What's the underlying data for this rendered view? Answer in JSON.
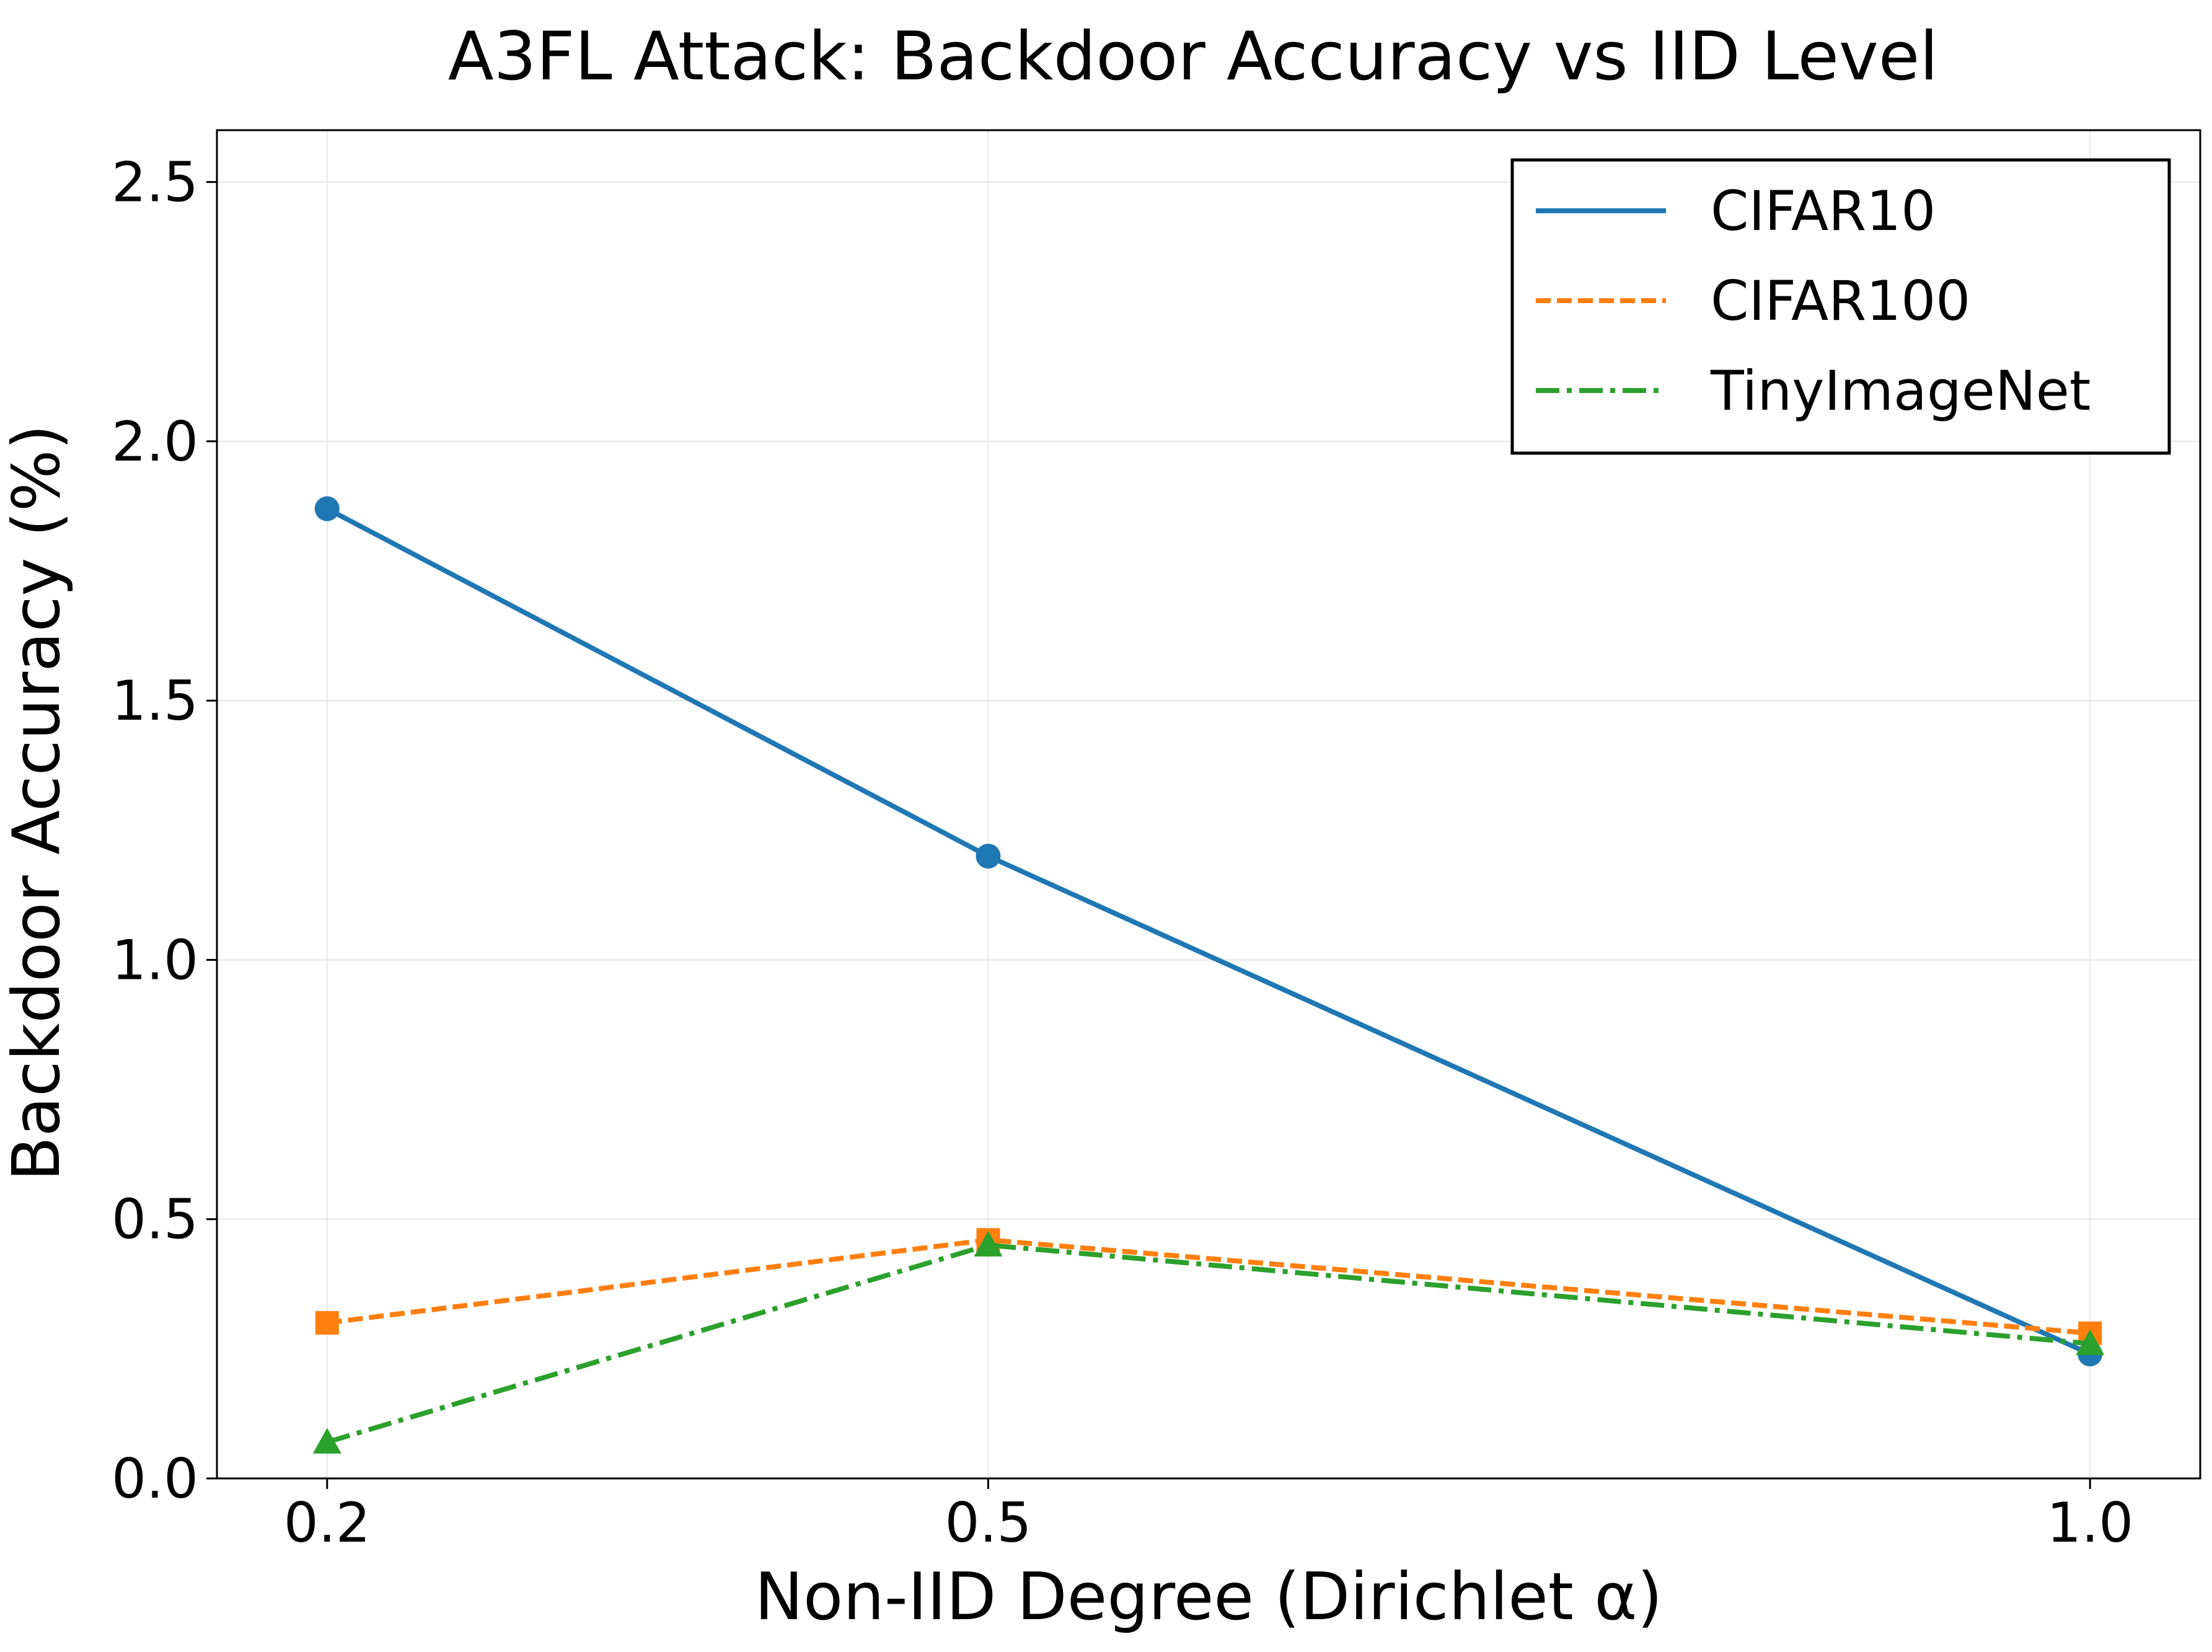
{
  "chart_data": {
    "type": "line",
    "title": "A3FL Attack: Backdoor Accuracy vs IID Level",
    "xlabel": "Non-IID Degree (Dirichlet α)",
    "ylabel": "Backdoor Accuracy (%)",
    "x": [
      0.2,
      0.5,
      1.0
    ],
    "x_tick_labels": [
      "0.2",
      "0.5",
      "1.0"
    ],
    "xlim": [
      0.15,
      1.05
    ],
    "ylim": [
      0,
      2.6
    ],
    "y_ticks": [
      0.0,
      0.5,
      1.0,
      1.5,
      2.0,
      2.5
    ],
    "y_tick_labels": [
      "0.0",
      "0.5",
      "1.0",
      "1.5",
      "2.0",
      "2.5"
    ],
    "grid": true,
    "legend_position": "top-right",
    "series": [
      {
        "name": "CIFAR10",
        "values": [
          1.87,
          1.2,
          0.24
        ],
        "color": "#1f77b4",
        "line_style": "solid",
        "marker": "circle"
      },
      {
        "name": "CIFAR100",
        "values": [
          0.3,
          0.46,
          0.28
        ],
        "color": "#ff7f0e",
        "line_style": "dashed",
        "marker": "square"
      },
      {
        "name": "TinyImageNet",
        "values": [
          0.07,
          0.45,
          0.26
        ],
        "color": "#2ca02c",
        "line_style": "dashdot",
        "marker": "triangle"
      }
    ]
  }
}
